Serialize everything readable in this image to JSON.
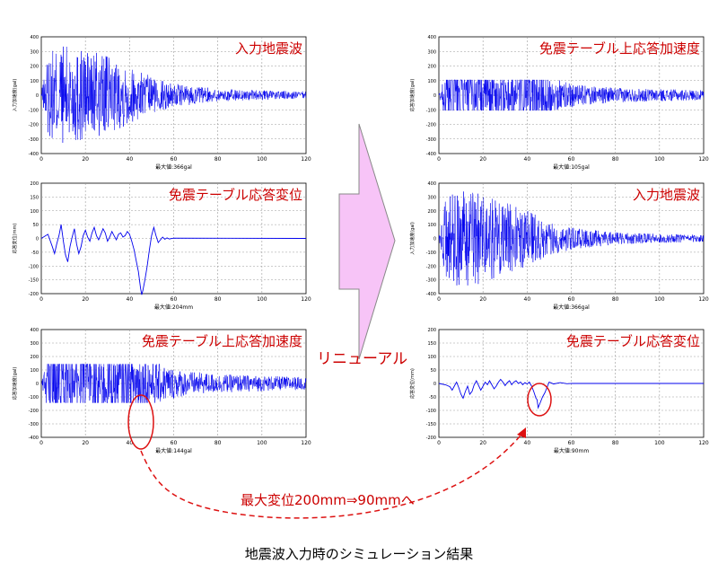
{
  "caption": "地震波入力時のシミュレーション結果",
  "arrow_label": "リニューアル",
  "callout_label": "最大変位200mm⇒90mmへ",
  "colors": {
    "series": "#0000ee",
    "panel_title": "#cc0000",
    "arrow_fill": "#f7c4f7",
    "callout": "#dd1111",
    "grid": "#9a9a9a"
  },
  "chart_data": [
    {
      "id": "left-accel-input",
      "type": "line",
      "title": "入力地震波",
      "ylabel": "入力加速度(gal)",
      "xlabel": "最大値:366gal",
      "xlim": [
        0,
        120
      ],
      "ylim": [
        -400,
        400
      ],
      "xticks": [
        0,
        20,
        40,
        60,
        80,
        100,
        120
      ],
      "yticks": [
        400,
        300,
        200,
        100,
        0,
        -100,
        -200,
        -300,
        -400
      ],
      "series": [
        {
          "kind": "noise",
          "max": 366,
          "min": -350,
          "envelope": [
            [
              0,
              0.05
            ],
            [
              3,
              0.75
            ],
            [
              8,
              0.95
            ],
            [
              20,
              0.9
            ],
            [
              30,
              0.72
            ],
            [
              40,
              0.55
            ],
            [
              50,
              0.35
            ],
            [
              60,
              0.22
            ],
            [
              80,
              0.12
            ],
            [
              100,
              0.09
            ],
            [
              120,
              0.07
            ]
          ]
        }
      ]
    },
    {
      "id": "left-accel-table",
      "type": "line",
      "title": "免震テーブル上応答加速度",
      "ylabel": "応答加速度(gal)",
      "xlabel": "最大値:105gal",
      "xlim": [
        0,
        120
      ],
      "ylim": [
        -400,
        400
      ],
      "xticks": [
        0,
        20,
        40,
        60,
        80,
        100,
        120
      ],
      "yticks": [
        400,
        300,
        200,
        100,
        0,
        -100,
        -200,
        -300,
        -400
      ],
      "series": [
        {
          "kind": "clipped",
          "max": 105,
          "min": -105,
          "envelope": [
            [
              0,
              0.05
            ],
            [
              3,
              1
            ],
            [
              45,
              1
            ],
            [
              55,
              0.6
            ],
            [
              65,
              0.4
            ],
            [
              80,
              0.3
            ],
            [
              100,
              0.25
            ],
            [
              120,
              0.2
            ]
          ]
        }
      ]
    },
    {
      "id": "left-disp-table",
      "type": "line",
      "title": "免震テーブル応答変位",
      "ylabel": "応答変位(mm)",
      "xlabel": "最大値:204mm",
      "xlim": [
        0,
        120
      ],
      "ylim": [
        -200,
        200
      ],
      "xticks": [
        0,
        20,
        40,
        60,
        80,
        100,
        120
      ],
      "yticks": [
        200,
        150,
        100,
        50,
        0,
        -50,
        -100,
        -150,
        -200
      ],
      "series": [
        {
          "kind": "points",
          "points": [
            [
              0,
              0
            ],
            [
              3,
              15
            ],
            [
              5,
              -30
            ],
            [
              6,
              -55
            ],
            [
              7,
              -20
            ],
            [
              8,
              10
            ],
            [
              9,
              50
            ],
            [
              10,
              -10
            ],
            [
              11,
              -60
            ],
            [
              12,
              -85
            ],
            [
              13,
              -30
            ],
            [
              14,
              5
            ],
            [
              15,
              35
            ],
            [
              16,
              -20
            ],
            [
              17,
              -55
            ],
            [
              18,
              -30
            ],
            [
              19,
              10
            ],
            [
              20,
              30
            ],
            [
              21,
              5
            ],
            [
              22,
              -10
            ],
            [
              23,
              20
            ],
            [
              24,
              40
            ],
            [
              25,
              10
            ],
            [
              26,
              -5
            ],
            [
              27,
              15
            ],
            [
              28,
              35
            ],
            [
              29,
              20
            ],
            [
              30,
              -10
            ],
            [
              31,
              5
            ],
            [
              32,
              25
            ],
            [
              33,
              10
            ],
            [
              34,
              -5
            ],
            [
              35,
              15
            ],
            [
              36,
              20
            ],
            [
              37,
              5
            ],
            [
              38,
              10
            ],
            [
              39,
              25
            ],
            [
              40,
              15
            ],
            [
              41,
              -10
            ],
            [
              42,
              -40
            ],
            [
              43,
              -80
            ],
            [
              44,
              -120
            ],
            [
              45,
              -180
            ],
            [
              45.5,
              -204
            ],
            [
              46,
              -190
            ],
            [
              47,
              -150
            ],
            [
              48,
              -100
            ],
            [
              49,
              -40
            ],
            [
              50,
              10
            ],
            [
              51,
              40
            ],
            [
              52,
              10
            ],
            [
              53,
              -15
            ],
            [
              54,
              -5
            ],
            [
              55,
              5
            ],
            [
              56,
              -3
            ],
            [
              57,
              2
            ],
            [
              58,
              -2
            ],
            [
              60,
              1
            ],
            [
              120,
              0
            ]
          ]
        }
      ]
    },
    {
      "id": "right-accel-input",
      "type": "line",
      "title": "入力地震波",
      "ylabel": "入力加速度(gal)",
      "xlabel": "最大値:366gal",
      "xlim": [
        0,
        120
      ],
      "ylim": [
        -400,
        400
      ],
      "xticks": [
        0,
        20,
        40,
        60,
        80,
        100,
        120
      ],
      "yticks": [
        400,
        300,
        200,
        100,
        0,
        -100,
        -200,
        -300,
        -400
      ],
      "series": [
        {
          "kind": "noise",
          "max": 366,
          "min": -350,
          "envelope": [
            [
              0,
              0.05
            ],
            [
              3,
              0.75
            ],
            [
              8,
              0.95
            ],
            [
              20,
              0.9
            ],
            [
              30,
              0.72
            ],
            [
              40,
              0.55
            ],
            [
              50,
              0.35
            ],
            [
              60,
              0.22
            ],
            [
              80,
              0.12
            ],
            [
              100,
              0.09
            ],
            [
              120,
              0.07
            ]
          ]
        }
      ]
    },
    {
      "id": "right-accel-table",
      "type": "line",
      "title": "免震テーブル上応答加速度",
      "ylabel": "応答加速度(gal)",
      "xlabel": "最大値:144gal",
      "xlim": [
        0,
        120
      ],
      "ylim": [
        -400,
        400
      ],
      "xticks": [
        0,
        20,
        40,
        60,
        80,
        100,
        120
      ],
      "yticks": [
        400,
        300,
        200,
        100,
        0,
        -100,
        -200,
        -300,
        -400
      ],
      "series": [
        {
          "kind": "clipped",
          "max": 144,
          "min": -144,
          "envelope": [
            [
              0,
              0.05
            ],
            [
              3,
              1
            ],
            [
              45,
              1
            ],
            [
              55,
              0.6
            ],
            [
              65,
              0.4
            ],
            [
              80,
              0.3
            ],
            [
              100,
              0.25
            ],
            [
              120,
              0.2
            ]
          ]
        }
      ]
    },
    {
      "id": "right-disp-table",
      "type": "line",
      "title": "免震テーブル応答変位",
      "ylabel": "応答変位(mm)",
      "xlabel": "最大値:90mm",
      "xlim": [
        0,
        120
      ],
      "ylim": [
        -200,
        200
      ],
      "xticks": [
        0,
        20,
        40,
        60,
        80,
        100,
        120
      ],
      "yticks": [
        200,
        150,
        100,
        50,
        0,
        -50,
        -100,
        -150,
        -200
      ],
      "series": [
        {
          "kind": "points",
          "points": [
            [
              0,
              0
            ],
            [
              3,
              -5
            ],
            [
              5,
              -12
            ],
            [
              6,
              -25
            ],
            [
              7,
              -10
            ],
            [
              8,
              5
            ],
            [
              9,
              -15
            ],
            [
              10,
              -40
            ],
            [
              11,
              -55
            ],
            [
              12,
              -30
            ],
            [
              13,
              -10
            ],
            [
              14,
              -40
            ],
            [
              15,
              -30
            ],
            [
              16,
              -5
            ],
            [
              17,
              10
            ],
            [
              18,
              -8
            ],
            [
              19,
              -25
            ],
            [
              20,
              -10
            ],
            [
              21,
              5
            ],
            [
              22,
              -5
            ],
            [
              23,
              10
            ],
            [
              24,
              -5
            ],
            [
              25,
              -20
            ],
            [
              26,
              -10
            ],
            [
              27,
              5
            ],
            [
              28,
              15
            ],
            [
              29,
              5
            ],
            [
              30,
              -8
            ],
            [
              31,
              3
            ],
            [
              32,
              10
            ],
            [
              33,
              -5
            ],
            [
              34,
              5
            ],
            [
              35,
              10
            ],
            [
              36,
              0
            ],
            [
              37,
              5
            ],
            [
              38,
              -5
            ],
            [
              39,
              3
            ],
            [
              40,
              -2
            ],
            [
              41,
              5
            ],
            [
              42,
              -10
            ],
            [
              43,
              -30
            ],
            [
              44,
              -55
            ],
            [
              44.5,
              -60
            ],
            [
              45,
              -90
            ],
            [
              46,
              -70
            ],
            [
              47,
              -50
            ],
            [
              48,
              -35
            ],
            [
              49,
              -15
            ],
            [
              50,
              5
            ],
            [
              52,
              -2
            ],
            [
              55,
              3
            ],
            [
              58,
              -1
            ],
            [
              60,
              0
            ],
            [
              120,
              0
            ]
          ]
        }
      ]
    }
  ]
}
